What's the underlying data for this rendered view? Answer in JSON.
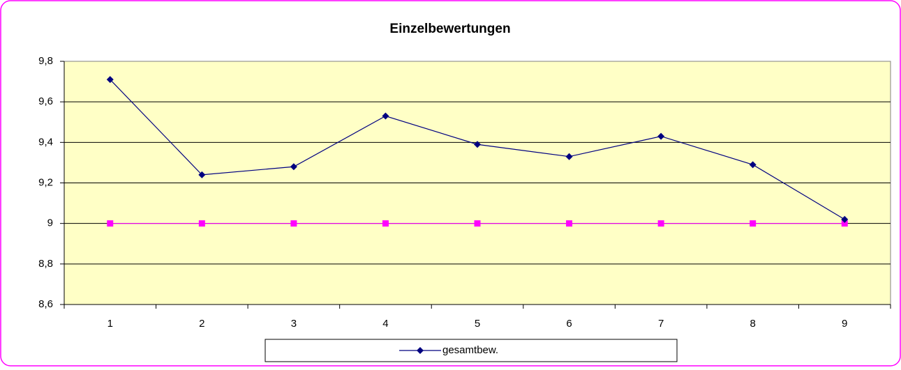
{
  "chart_data": {
    "type": "line",
    "title": "Einzelbewertungen",
    "categories": [
      "1",
      "2",
      "3",
      "4",
      "5",
      "6",
      "7",
      "8",
      "9"
    ],
    "series": [
      {
        "name": "gesamtbew.",
        "color": "#000080",
        "marker": "diamond",
        "values": [
          9.71,
          9.24,
          9.28,
          9.53,
          9.39,
          9.33,
          9.43,
          9.29,
          9.02
        ]
      },
      {
        "color": "#ff00ff",
        "marker": "square",
        "values": [
          9,
          9,
          9,
          9,
          9,
          9,
          9,
          9,
          9
        ]
      }
    ],
    "ylim": [
      8.6,
      9.8
    ],
    "yticks": [
      {
        "value": 8.6,
        "label": "8,6"
      },
      {
        "value": 8.8,
        "label": "8,8"
      },
      9,
      {
        "value": 9.2,
        "label": "9,2"
      },
      {
        "value": 9.4,
        "label": "9,4"
      },
      {
        "value": 9.6,
        "label": "9,6"
      },
      {
        "value": 9.8,
        "label": "9,8"
      }
    ],
    "grid": true,
    "legend": "bottom",
    "plot_background": "#ffffc6"
  }
}
